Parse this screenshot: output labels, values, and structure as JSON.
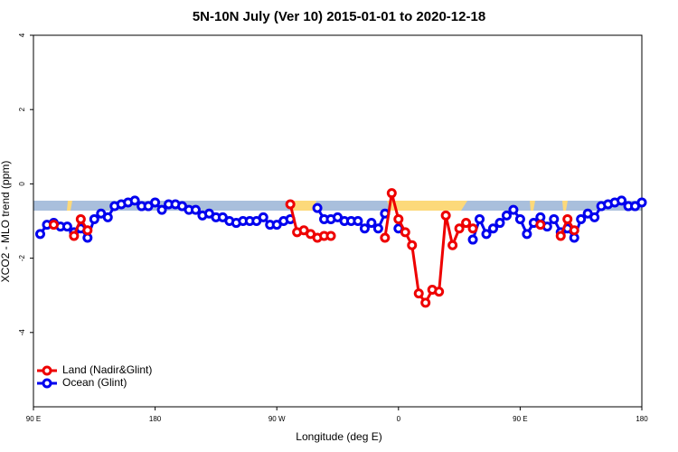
{
  "chart_data": {
    "type": "line",
    "title": "5N-10N July (Ver 10)   2015-01-01 to 2020-12-18",
    "x_label": "Longitude (deg E)",
    "y_label": "XCO2 - MLO trend (ppm)",
    "xlim": [
      90,
      540
    ],
    "ylim": [
      -6,
      4
    ],
    "xticks": [
      {
        "value": 90,
        "label": "90 E"
      },
      180,
      {
        "value": 270,
        "label": "90 W"
      },
      {
        "value": 360,
        "label": "0"
      },
      {
        "value": 450,
        "label": "90 E"
      },
      {
        "value": 540,
        "label": "180"
      }
    ],
    "yticks": [
      -4,
      -2,
      0,
      2,
      4
    ],
    "legend": "bottom-left",
    "grid": false,
    "x": [
      95,
      100,
      105,
      110,
      115,
      120,
      125,
      130,
      135,
      140,
      145,
      150,
      155,
      160,
      165,
      170,
      175,
      180,
      185,
      190,
      195,
      200,
      205,
      210,
      215,
      220,
      225,
      230,
      235,
      240,
      245,
      250,
      255,
      260,
      265,
      270,
      275,
      280,
      285,
      290,
      295,
      300,
      305,
      310,
      315,
      320,
      325,
      330,
      335,
      340,
      345,
      350,
      355,
      360,
      365,
      370,
      375,
      380,
      385,
      390,
      395,
      400,
      405,
      410,
      415,
      420,
      425,
      430,
      435,
      440,
      445,
      450,
      455,
      460,
      465,
      470,
      475,
      480,
      485,
      490,
      495,
      500,
      505,
      510,
      515,
      520,
      525,
      530,
      535,
      540
    ],
    "series": [
      {
        "name": "Ocean (Glint)",
        "color": "#0000ee",
        "values": [
          -1.35,
          -1.1,
          -1.05,
          -1.15,
          -1.15,
          -1.3,
          -1.2,
          -1.45,
          -0.95,
          -0.8,
          -0.9,
          -0.6,
          -0.55,
          -0.5,
          -0.45,
          -0.6,
          -0.6,
          -0.5,
          -0.7,
          -0.55,
          -0.55,
          -0.6,
          -0.7,
          -0.7,
          -0.85,
          -0.8,
          -0.9,
          -0.9,
          -1.0,
          -1.05,
          -1.0,
          -1.0,
          -1.0,
          -0.9,
          -1.1,
          -1.1,
          -1.0,
          -0.95,
          null,
          null,
          null,
          -0.65,
          -0.95,
          -0.95,
          -0.9,
          -1.0,
          -1.0,
          -1.0,
          -1.2,
          -1.05,
          -1.2,
          -0.8,
          null,
          -1.2,
          null,
          null,
          null,
          null,
          null,
          null,
          null,
          null,
          null,
          null,
          -1.5,
          -0.95,
          -1.35,
          -1.2,
          -1.05,
          -0.85,
          -0.7,
          -0.95,
          -1.35,
          -1.05,
          -0.9,
          -1.15,
          -0.95,
          -1.3,
          -1.2,
          -1.45,
          -0.95,
          -0.8,
          -0.9,
          -0.6,
          -0.55,
          -0.5,
          -0.45,
          -0.6,
          -0.6,
          -0.5
        ]
      },
      {
        "name": "Land (Nadir&Glint)",
        "color": "#ee0000",
        "values": [
          null,
          null,
          -1.1,
          null,
          null,
          -1.4,
          -0.95,
          -1.25,
          null,
          null,
          null,
          null,
          null,
          null,
          null,
          null,
          null,
          null,
          null,
          null,
          null,
          null,
          null,
          null,
          null,
          null,
          null,
          null,
          null,
          null,
          null,
          null,
          null,
          null,
          null,
          null,
          null,
          -0.55,
          -1.3,
          -1.25,
          -1.35,
          -1.45,
          -1.4,
          -1.4,
          null,
          null,
          null,
          null,
          null,
          null,
          null,
          -1.45,
          -0.25,
          -0.95,
          -1.3,
          -1.65,
          -2.95,
          -3.2,
          -2.85,
          -2.9,
          -0.85,
          -1.65,
          -1.2,
          -1.05,
          -1.2,
          null,
          null,
          null,
          null,
          null,
          null,
          null,
          null,
          null,
          -1.1,
          null,
          null,
          -1.4,
          -0.95,
          -1.25,
          null,
          null,
          null,
          null,
          null,
          null,
          null,
          null,
          null,
          null
        ]
      }
    ]
  }
}
